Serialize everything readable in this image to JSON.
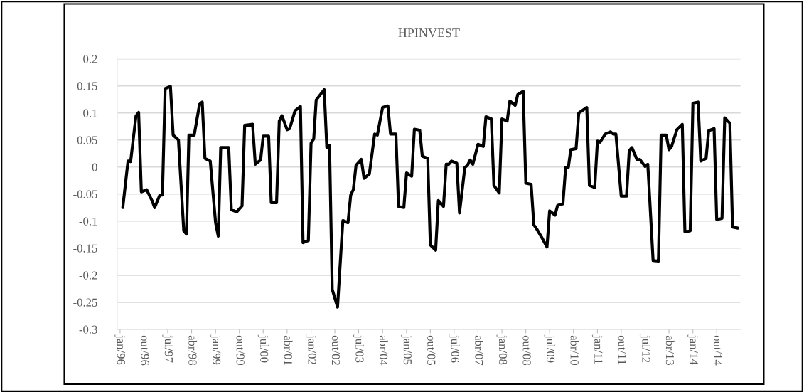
{
  "chart_data": {
    "type": "line",
    "title": "HPINVEST",
    "series": [
      {
        "color": "#000000",
        "x": [
          "1996-02",
          "1996-04",
          "1996-05",
          "1996-07",
          "1996-08",
          "1996-09",
          "1996-11",
          "1997-01",
          "1997-02",
          "1997-04",
          "1997-05",
          "1997-06",
          "1997-08",
          "1997-09",
          "1997-11",
          "1998-01",
          "1998-02",
          "1998-03",
          "1998-05",
          "1998-07",
          "1998-08",
          "1998-09",
          "1998-11",
          "1999-01",
          "1999-02",
          "1999-03",
          "1999-06",
          "1999-07",
          "1999-09",
          "1999-11",
          "1999-12",
          "2000-03",
          "2000-04",
          "2000-06",
          "2000-07",
          "2000-09",
          "2000-10",
          "2000-12",
          "2001-01",
          "2001-02",
          "2001-04",
          "2001-05",
          "2001-07",
          "2001-09",
          "2001-10",
          "2001-12",
          "2002-01",
          "2002-02",
          "2002-03",
          "2002-06",
          "2002-07",
          "2002-08",
          "2002-09",
          "2002-11",
          "2003-01",
          "2003-03",
          "2003-04",
          "2003-05",
          "2003-06",
          "2003-08",
          "2003-09",
          "2003-11",
          "2004-01",
          "2004-02",
          "2004-04",
          "2004-06",
          "2004-07",
          "2004-09",
          "2004-10",
          "2004-12",
          "2005-01",
          "2005-03",
          "2005-04",
          "2005-06",
          "2005-07",
          "2005-09",
          "2005-10",
          "2005-12",
          "2006-01",
          "2006-03",
          "2006-04",
          "2006-05",
          "2006-06",
          "2006-08",
          "2006-09",
          "2006-11",
          "2006-12",
          "2007-01",
          "2007-02",
          "2007-04",
          "2007-06",
          "2007-07",
          "2007-09",
          "2007-10",
          "2007-12",
          "2008-01",
          "2008-03",
          "2008-04",
          "2008-06",
          "2008-07",
          "2008-09",
          "2008-10",
          "2008-12",
          "2009-01",
          "2009-02",
          "2009-04",
          "2009-06",
          "2009-07",
          "2009-09",
          "2009-10",
          "2009-12",
          "2010-01",
          "2010-02",
          "2010-03",
          "2010-05",
          "2010-06",
          "2010-09",
          "2010-10",
          "2010-12",
          "2011-01",
          "2011-02",
          "2011-04",
          "2011-06",
          "2011-07",
          "2011-08",
          "2011-10",
          "2011-12",
          "2012-01",
          "2012-02",
          "2012-04",
          "2012-05",
          "2012-07",
          "2012-08",
          "2012-10",
          "2012-12",
          "2013-01",
          "2013-03",
          "2013-04",
          "2013-05",
          "2013-07",
          "2013-09",
          "2013-10",
          "2013-12",
          "2014-01",
          "2014-03",
          "2014-04",
          "2014-06",
          "2014-07",
          "2014-09",
          "2014-10",
          "2014-12",
          "2015-01",
          "2015-03",
          "2015-04",
          "2015-06"
        ],
        "values": [
          -0.075,
          0.011,
          0.01,
          0.094,
          0.101,
          -0.046,
          -0.042,
          -0.062,
          -0.075,
          -0.052,
          -0.052,
          0.145,
          0.149,
          0.059,
          0.05,
          -0.118,
          -0.124,
          0.059,
          0.059,
          0.116,
          0.12,
          0.016,
          0.011,
          -0.103,
          -0.128,
          0.036,
          0.036,
          -0.079,
          -0.083,
          -0.072,
          0.077,
          0.079,
          0.005,
          0.013,
          0.057,
          0.057,
          -0.066,
          -0.066,
          0.085,
          0.095,
          0.069,
          0.071,
          0.104,
          0.112,
          -0.14,
          -0.136,
          0.044,
          0.052,
          0.124,
          0.143,
          0.036,
          0.04,
          -0.226,
          -0.259,
          -0.099,
          -0.103,
          -0.052,
          -0.042,
          0.003,
          0.014,
          -0.021,
          -0.013,
          0.061,
          0.059,
          0.11,
          0.113,
          0.061,
          0.061,
          -0.073,
          -0.075,
          -0.011,
          -0.017,
          0.07,
          0.068,
          0.02,
          0.016,
          -0.144,
          -0.154,
          -0.062,
          -0.073,
          0.005,
          0.005,
          0.011,
          0.007,
          -0.085,
          -0.001,
          0.003,
          0.013,
          0.005,
          0.042,
          0.038,
          0.093,
          0.089,
          -0.034,
          -0.048,
          0.089,
          0.085,
          0.122,
          0.114,
          0.134,
          0.14,
          -0.03,
          -0.032,
          -0.107,
          -0.114,
          -0.13,
          -0.148,
          -0.081,
          -0.089,
          -0.071,
          -0.068,
          -0.001,
          -0.001,
          0.032,
          0.034,
          0.1,
          0.11,
          -0.034,
          -0.038,
          0.048,
          0.046,
          0.061,
          0.065,
          0.061,
          0.061,
          -0.054,
          -0.054,
          0.03,
          0.036,
          0.013,
          0.014,
          0.001,
          0.005,
          -0.173,
          -0.174,
          0.059,
          0.059,
          0.032,
          0.038,
          0.069,
          0.079,
          -0.12,
          -0.118,
          0.118,
          0.12,
          0.011,
          0.016,
          0.067,
          0.071,
          -0.097,
          -0.095,
          0.091,
          0.081,
          -0.111,
          -0.113
        ]
      }
    ],
    "xlim": [
      "1995-12",
      "2015-07"
    ],
    "xticks": [
      {
        "value": "1996-01",
        "label": "jan/96"
      },
      {
        "value": "1996-10",
        "label": "out/96"
      },
      {
        "value": "1997-07",
        "label": "jul/97"
      },
      {
        "value": "1998-04",
        "label": "abr/98"
      },
      {
        "value": "1999-01",
        "label": "jan/99"
      },
      {
        "value": "1999-10",
        "label": "out/99"
      },
      {
        "value": "2000-07",
        "label": "jul/00"
      },
      {
        "value": "2001-04",
        "label": "abr/01"
      },
      {
        "value": "2002-01",
        "label": "jan/02"
      },
      {
        "value": "2002-10",
        "label": "out/02"
      },
      {
        "value": "2003-07",
        "label": "jul/03"
      },
      {
        "value": "2004-04",
        "label": "abr/04"
      },
      {
        "value": "2005-01",
        "label": "jan/05"
      },
      {
        "value": "2005-10",
        "label": "out/05"
      },
      {
        "value": "2006-07",
        "label": "jul/06"
      },
      {
        "value": "2007-04",
        "label": "abr/07"
      },
      {
        "value": "2008-01",
        "label": "jan/08"
      },
      {
        "value": "2008-10",
        "label": "out/08"
      },
      {
        "value": "2009-07",
        "label": "jul/09"
      },
      {
        "value": "2010-04",
        "label": "abr/10"
      },
      {
        "value": "2011-01",
        "label": "jan/11"
      },
      {
        "value": "2011-10",
        "label": "out/11"
      },
      {
        "value": "2012-07",
        "label": "jul/12"
      },
      {
        "value": "2013-04",
        "label": "abr/13"
      },
      {
        "value": "2014-01",
        "label": "jan/14"
      },
      {
        "value": "2014-10",
        "label": "out/14"
      }
    ],
    "ylim": [
      -0.3,
      0.2
    ],
    "yticks": [
      -0.3,
      -0.25,
      -0.2,
      -0.15,
      -0.1,
      -0.05,
      0,
      0.05,
      0.1,
      0.15,
      0.2
    ],
    "grid": "y",
    "line_style": "solid",
    "marker": "none"
  }
}
